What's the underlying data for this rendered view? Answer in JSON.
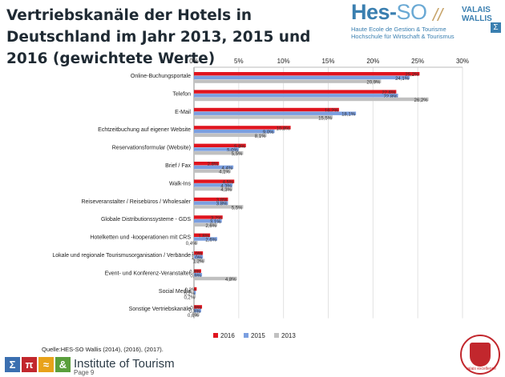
{
  "title": "Vertriebskanäle der Hotels in Deutschland im Jahr 2013, 2015 und 2016 (gewichtete Werte)",
  "logo": {
    "brand_main": "Hes",
    "brand_dash": "-",
    "brand_so": "SO",
    "region_line1": "VALAIS",
    "region_line2": "WALLIS",
    "sub_line1": "Haute Ecole de Gestion & Tourisme",
    "sub_line2": "Hochschule für Wirtschaft & Tourismus",
    "mark": "Σ"
  },
  "source": "Quelle:HES-SO Wallis (2014), (2016), (2017).",
  "footer": {
    "icons": [
      {
        "name": "sigma-icon",
        "glyph": "Σ",
        "color": "#3b6fb0"
      },
      {
        "name": "pi-icon",
        "glyph": "π",
        "color": "#c2272d"
      },
      {
        "name": "approx-icon",
        "glyph": "≈",
        "color": "#e8a21a"
      },
      {
        "name": "ampersand-icon",
        "glyph": "&",
        "color": "#5a9f3c"
      }
    ],
    "institute": "Institute of Tourism",
    "page": "Page 9"
  },
  "seal_text": "valais excellence",
  "chart_data": {
    "type": "bar",
    "orientation": "horizontal",
    "title": "Vertriebskanäle der Hotels in Deutschland im Jahr 2013, 2015 und 2016 (gewichtete Werte)",
    "xlim": [
      0,
      30
    ],
    "ticks": [
      0,
      5,
      10,
      15,
      20,
      25,
      30
    ],
    "tick_suffix": "%",
    "legend_position": "bottom",
    "categories": [
      "Online-Buchungsportale",
      "Telefon",
      "E-Mail",
      "Echtzeitbuchung auf eigener Website",
      "Reservationsformular (Website)",
      "Brief / Fax",
      "Walk-Ins",
      "Reiseveranstalter / Reisebüros / Wholesaler",
      "Globale Distributionssysteme - GDS",
      "Hotelketten und -kooperationen mit CRS",
      "Lokale und regionale Tourismusorganisation / Verbände",
      "Event- und Konferenz-Veranstalter",
      "Social Media",
      "Sonstige Vertriebskanäle"
    ],
    "series": [
      {
        "name": "2016",
        "color": "#e0141e",
        "values": [
          25.2,
          22.6,
          16.2,
          10.8,
          5.8,
          2.8,
          4.5,
          3.8,
          3.2,
          1.8,
          1.0,
          0.8,
          0.3,
          0.9
        ],
        "labels": [
          "25,2%",
          "22,6%",
          "16,2%",
          "10,8%",
          "5,8%",
          "2,8%",
          "4,5%",
          "3,8%",
          "3,2%",
          "1,8%",
          "1,0%",
          "0,8%",
          "0,3%",
          "0,9%"
        ]
      },
      {
        "name": "2015",
        "color": "#7b9fe0",
        "values": [
          24.1,
          22.8,
          18.1,
          9.0,
          5.0,
          4.4,
          4.3,
          3.8,
          3.1,
          2.6,
          1.0,
          0.9,
          0.2,
          0.8
        ],
        "labels": [
          "24,1%",
          "22,8%",
          "18,1%",
          "9,0%",
          "5,0%",
          "4,4%",
          "4,3%",
          "3,8%",
          "3,1%",
          "2,6%",
          "1,0%",
          "0,9%",
          "0,2%",
          "0,8%"
        ]
      },
      {
        "name": "2013",
        "color": "#c0c0c0",
        "values": [
          20.9,
          26.2,
          15.5,
          8.1,
          5.5,
          4.1,
          4.3,
          5.5,
          2.6,
          0.4,
          1.2,
          4.8,
          0.2,
          0.6
        ],
        "labels": [
          "20,9%",
          "26,2%",
          "15,5%",
          "8,1%",
          "5,5%",
          "4,1%",
          "4,3%",
          "5,5%",
          "2,6%",
          "0,4%",
          "1,2%",
          "4,8%",
          "0,2%",
          "0,6%"
        ]
      }
    ]
  }
}
